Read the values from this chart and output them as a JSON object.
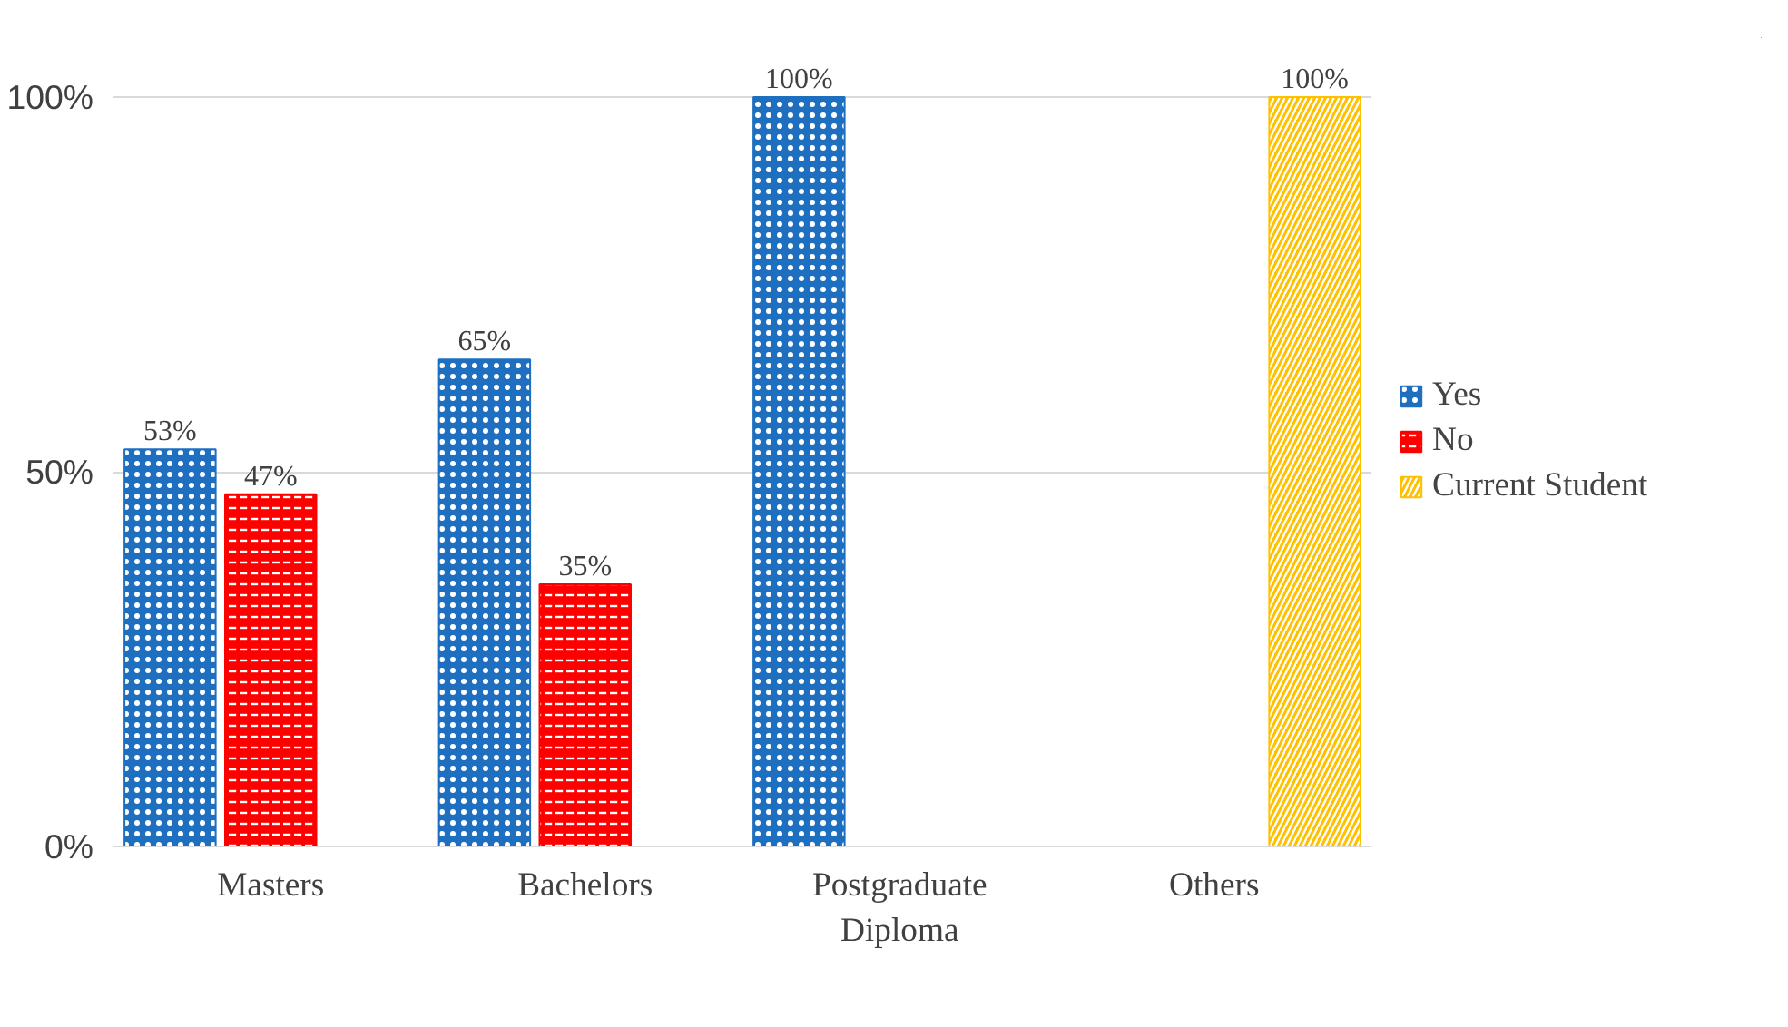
{
  "chart_data": {
    "type": "bar",
    "categories": [
      "Masters",
      "Bachelors",
      "Postgraduate\nDiploma",
      "Others"
    ],
    "series": [
      {
        "name": "Yes",
        "color": "#1f6fc0",
        "values": [
          53,
          65,
          100,
          null
        ],
        "value_labels": [
          "53%",
          "65%",
          "100%",
          null
        ]
      },
      {
        "name": "No",
        "color": "#ff0000",
        "values": [
          47,
          35,
          null,
          null
        ],
        "value_labels": [
          "47%",
          "35%",
          null,
          null
        ]
      },
      {
        "name": "Current Student",
        "color": "#ffc000",
        "values": [
          null,
          null,
          null,
          100
        ],
        "value_labels": [
          null,
          null,
          null,
          "100%"
        ]
      }
    ],
    "ylim": [
      0,
      100
    ],
    "yticks": [
      {
        "value": 0,
        "label": "0%"
      },
      {
        "value": 50,
        "label": "50%"
      },
      {
        "value": 100,
        "label": "100%"
      }
    ],
    "grid": "y",
    "legend": "right"
  }
}
